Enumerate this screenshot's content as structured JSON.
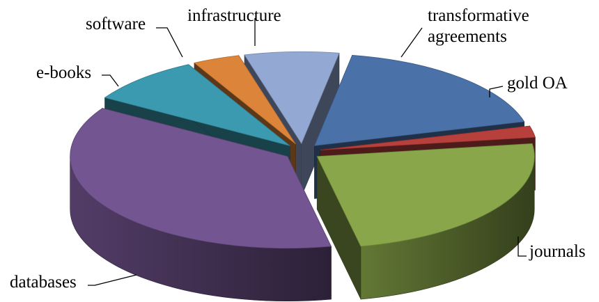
{
  "chart_data": {
    "type": "pie",
    "style": "3d-exploded",
    "title": "",
    "legend": "none",
    "slices": [
      {
        "label": "transformative agreements",
        "label_lines": [
          "transformative",
          "agreements"
        ],
        "value": 18.0,
        "color": "#4a72a8"
      },
      {
        "label": "gold OA",
        "label_lines": [
          "gold OA"
        ],
        "value": 2.0,
        "color": "#b8403c"
      },
      {
        "label": "journals",
        "label_lines": [
          "journals"
        ],
        "value": 24.0,
        "color": "#89a74a"
      },
      {
        "label": "databases",
        "label_lines": [
          "databases"
        ],
        "value": 37.0,
        "color": "#735591"
      },
      {
        "label": "e-books",
        "label_lines": [
          "e-books"
        ],
        "value": 8.5,
        "color": "#3b9aaf"
      },
      {
        "label": "software",
        "label_lines": [
          "software"
        ],
        "value": 3.5,
        "color": "#dc843a"
      },
      {
        "label": "infrastructure",
        "label_lines": [
          "infrastructure"
        ],
        "value": 7.0,
        "color": "#93a9d3"
      }
    ]
  }
}
